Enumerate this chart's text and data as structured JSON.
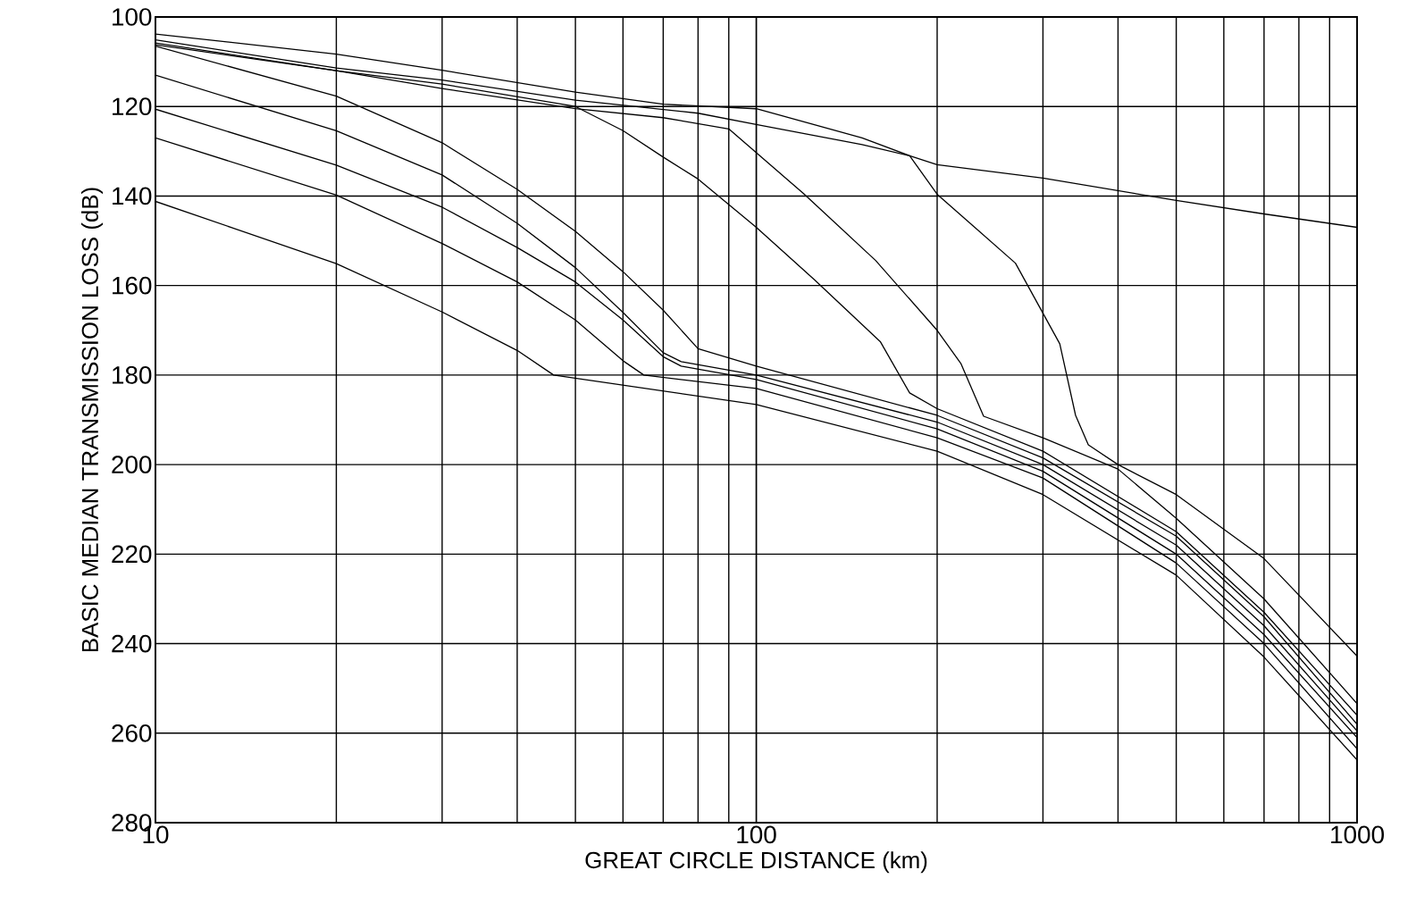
{
  "chart_data": {
    "type": "line",
    "xlabel": "GREAT CIRCLE DISTANCE (km)",
    "ylabel": "BASIC MEDIAN TRANSMISSION LOSS (dB)",
    "log": "x",
    "grid": true,
    "xlim": [
      10,
      1000
    ],
    "xticks": [
      10,
      100,
      1000
    ],
    "ylim": [
      280,
      100
    ],
    "yticks": [
      100,
      120,
      140,
      160,
      180,
      200,
      220,
      240,
      260,
      280
    ],
    "series": [
      {
        "color": "#000000",
        "x": [
          10,
          20,
          30,
          50,
          80,
          100,
          150,
          180,
          200,
          300,
          500,
          700,
          1000
        ],
        "values": [
          105.1,
          111.4,
          114.1,
          118.6,
          121.5,
          124,
          128.5,
          131,
          133,
          136,
          141,
          144,
          147
        ]
      },
      {
        "color": "#000000",
        "x": [
          10,
          20,
          30,
          50,
          70,
          100,
          150,
          180,
          200,
          270,
          320,
          340,
          357,
          400,
          500,
          700,
          1000
        ],
        "values": [
          103.8,
          108.3,
          111.9,
          116.8,
          119.5,
          120.5,
          127,
          131,
          139.6,
          155,
          173,
          189,
          195.6,
          200,
          206.7,
          221,
          242.8
        ]
      },
      {
        "color": "#000000",
        "x": [
          10,
          20,
          30,
          50,
          70,
          90,
          120,
          158,
          200,
          219,
          239,
          300,
          400,
          500,
          700,
          1000
        ],
        "values": [
          105.8,
          112,
          116,
          120.5,
          122.5,
          125,
          139.5,
          154.4,
          170,
          177.4,
          189.2,
          194,
          201,
          212,
          230,
          253.4
        ]
      },
      {
        "color": "#000000",
        "x": [
          10,
          20,
          30,
          50,
          60,
          70,
          80,
          100,
          125,
          161,
          180,
          200,
          300,
          500,
          700,
          1000
        ],
        "values": [
          106.2,
          112,
          115,
          120,
          125.4,
          131.3,
          136.2,
          147,
          158.7,
          172.6,
          184,
          187.5,
          197,
          215,
          233,
          256
        ]
      },
      {
        "color": "#000000",
        "x": [
          10,
          20,
          30,
          40,
          50,
          60,
          70,
          80,
          100,
          200,
          300,
          500,
          700,
          1000
        ],
        "values": [
          106.5,
          117.7,
          128.1,
          138.5,
          147.9,
          156.9,
          165.5,
          174.1,
          178,
          189,
          198.5,
          216,
          234,
          258
        ]
      },
      {
        "color": "#000000",
        "x": [
          10,
          20,
          30,
          40,
          50,
          60,
          70,
          75,
          100,
          200,
          300,
          500,
          700,
          1000
        ],
        "values": [
          113,
          125.4,
          135.3,
          146.1,
          156,
          166,
          175,
          177,
          180,
          190.5,
          200,
          218,
          236,
          259.5
        ]
      },
      {
        "color": "#000000",
        "x": [
          10,
          20,
          30,
          40,
          50,
          60,
          70,
          75,
          100,
          200,
          300,
          500,
          700,
          1000
        ],
        "values": [
          120.6,
          133.1,
          142.5,
          151.5,
          159.2,
          167.7,
          175.9,
          178,
          181,
          192,
          201.5,
          220,
          238,
          261
        ]
      },
      {
        "color": "#000000",
        "x": [
          10,
          20,
          30,
          40,
          50,
          60,
          65,
          100,
          200,
          300,
          500,
          700,
          1000
        ],
        "values": [
          127,
          139.8,
          150.6,
          159.2,
          167.7,
          176.8,
          180,
          183,
          194,
          203,
          222,
          240,
          263.5
        ]
      },
      {
        "color": "#000000",
        "x": [
          10,
          20,
          30,
          40,
          46,
          100,
          200,
          300,
          500,
          700,
          1000
        ],
        "values": [
          141.2,
          155.1,
          165.9,
          174.5,
          180,
          186.6,
          197,
          206.7,
          224.7,
          243,
          266
        ]
      }
    ]
  }
}
